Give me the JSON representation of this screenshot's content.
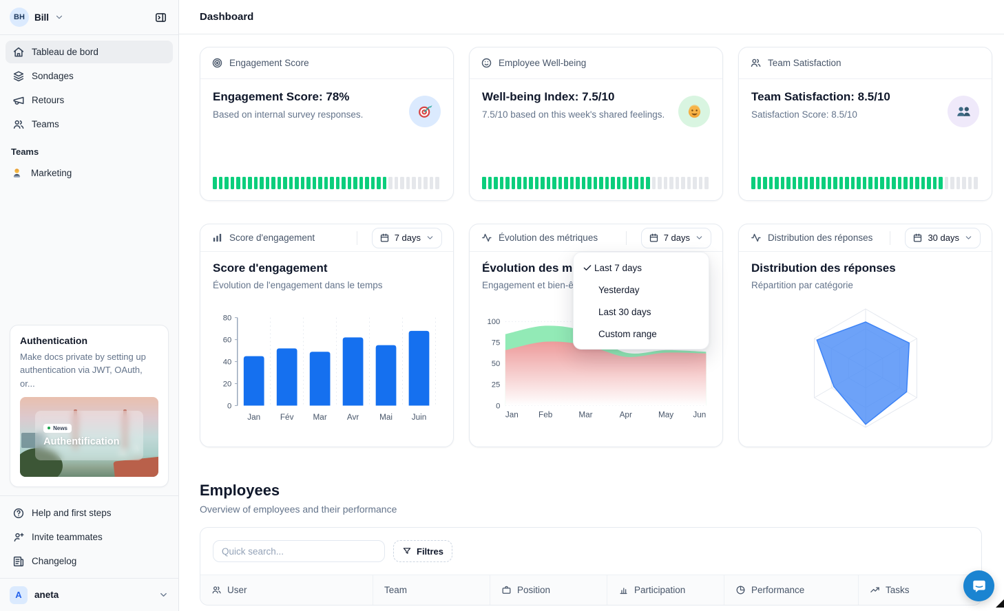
{
  "colors": {
    "accent_blue": "#1570EF",
    "progress_green": "#0BCE7C",
    "progress_gray": "#E5E7EB",
    "radar_fill": "#4D8DF7",
    "radar_stroke": "#3B82F6",
    "area_green": "#8CE9B2",
    "area_red": "#ED9B9B"
  },
  "sidebar": {
    "user": {
      "initials": "BH",
      "name": "Bill"
    },
    "nav": [
      {
        "label": "Tableau de bord",
        "icon": "home",
        "active": true
      },
      {
        "label": "Sondages",
        "icon": "layers",
        "active": false
      },
      {
        "label": "Retours",
        "icon": "megaphone",
        "active": false
      },
      {
        "label": "Teams",
        "icon": "users",
        "active": false
      }
    ],
    "section_label": "Teams",
    "teams": [
      {
        "label": "Marketing",
        "icon": "technologist"
      }
    ],
    "promo": {
      "title": "Authentication",
      "description": "Make docs private by setting up authentication via JWT, OAuth, or...",
      "badge": "News",
      "image_caption": "Authentification"
    },
    "footer_nav": [
      {
        "label": "Help and first steps",
        "icon": "help-circle"
      },
      {
        "label": "Invite teammates",
        "icon": "user-plus"
      },
      {
        "label": "Changelog",
        "icon": "newspaper"
      }
    ],
    "workspace": {
      "initial": "A",
      "name": "aneta"
    }
  },
  "header": {
    "title": "Dashboard"
  },
  "metric_cards": [
    {
      "header": "Engagement Score",
      "icon": "target",
      "title": "Engagement Score: 78%",
      "subtitle": "Based on internal survey responses.",
      "emoji": "dart-target",
      "emoji_bg": "#DBEAFE",
      "progress_percent": 78
    },
    {
      "header": "Employee Well-being",
      "icon": "smile",
      "title": "Well-being Index: 7.5/10",
      "subtitle": "7.5/10 based on this week's shared feelings.",
      "emoji": "smiling-face",
      "emoji_bg": "#D9F5E1",
      "progress_percent": 75
    },
    {
      "header": "Team Satisfaction",
      "icon": "users",
      "title": "Team Satisfaction: 8.5/10",
      "subtitle": "Satisfaction Score: 8.5/10",
      "emoji": "busts-in-silhouette",
      "emoji_bg": "#EFE9FA",
      "progress_percent": 85
    }
  ],
  "chart_cards": [
    {
      "header": "Score d'engagement",
      "icon": "bar-chart",
      "range": "7 days"
    },
    {
      "header": "Évolution des métriques",
      "icon": "activity",
      "range": "7 days"
    },
    {
      "header": "Distribution des réponses",
      "icon": "activity",
      "range": "30 days"
    }
  ],
  "dropdown": {
    "selected": "Last 7 days",
    "items": [
      "Last 7 days",
      "Yesterday",
      "Last 30 days",
      "Custom range"
    ]
  },
  "chart_data": [
    {
      "type": "bar",
      "title": "Score d'engagement",
      "subtitle": "Évolution de l'engagement dans le temps",
      "categories": [
        "Jan",
        "Fév",
        "Mar",
        "Avr",
        "Mai",
        "Juin"
      ],
      "values": [
        45,
        52,
        49,
        62,
        55,
        68
      ],
      "ylim": [
        0,
        80
      ],
      "yticks": [
        0,
        20,
        40,
        60,
        80
      ],
      "bar_color": "#1570EF",
      "grid": "dashed-vertical"
    },
    {
      "type": "area",
      "title": "Évolution des métriques",
      "subtitle": "Engagement et bien-être",
      "x": [
        "Jan",
        "Feb",
        "Mar",
        "Apr",
        "May",
        "Jun"
      ],
      "series": [
        {
          "name": "engagement",
          "color": "#8CE9B2",
          "values": [
            85,
            95,
            88,
            63,
            66,
            64
          ]
        },
        {
          "name": "bien-être",
          "color": "#ED9B9B",
          "values": [
            66,
            76,
            72,
            58,
            63,
            62
          ]
        }
      ],
      "ylim": [
        0,
        100
      ],
      "yticks": [
        0,
        25,
        50,
        75,
        100
      ],
      "grid": "dotted-horizontal"
    },
    {
      "type": "radar",
      "title": "Distribution des réponses",
      "subtitle": "Répartition par catégorie",
      "axes_count": 6,
      "values": [
        78,
        85,
        80,
        95,
        62,
        95
      ],
      "max": 100,
      "rings": 3,
      "fill": "#4D8DF7",
      "stroke": "#3B82F6"
    }
  ],
  "employees": {
    "title": "Employees",
    "subtitle": "Overview of employees and their performance",
    "search_placeholder": "Quick search...",
    "filters_label": "Filtres",
    "columns": [
      {
        "label": "User",
        "icon": "users"
      },
      {
        "label": "Team",
        "icon": null
      },
      {
        "label": "Position",
        "icon": "briefcase"
      },
      {
        "label": "Participation",
        "icon": "bar-chart"
      },
      {
        "label": "Performance",
        "icon": "pie-chart"
      },
      {
        "label": "Tasks",
        "icon": "trending-up"
      }
    ]
  }
}
